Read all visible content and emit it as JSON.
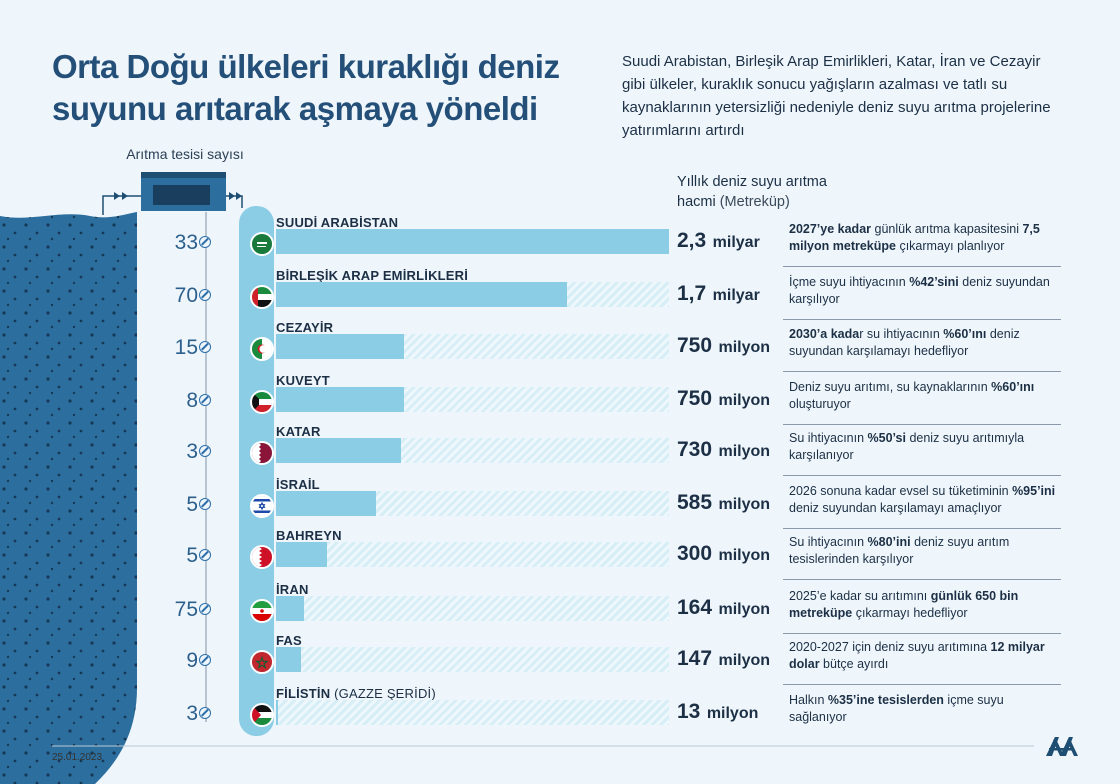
{
  "header": {
    "title": "Orta Doğu ülkeleri kuraklığı deniz suyunu arıtarak aşmaya yöneldi",
    "subtitle": "Suudi Arabistan, Birleşik Arap Emirlikleri, Katar, İran ve Cezayir gibi ülkeler, kuraklık sonucu yağışların azalması ve tatlı su kaynaklarının yetersizliği nedeniyle deniz suyu arıtma projelerine yatırımlarını artırdı"
  },
  "plant_label": "Arıtma tesisi sayısı",
  "volume_header": {
    "line1": "Yıllık deniz suyu arıtma",
    "line2": "hacmi",
    "unit": "(Metreküp)"
  },
  "chart_data": {
    "type": "bar",
    "title": "Yıllık deniz suyu arıtma hacmi",
    "unit": "Metreküp",
    "categories": [
      "SUUDİ ARABİSTAN",
      "BİRLEŞİK ARAP EMİRLİKLERİ",
      "CEZAYİR",
      "KUVEYT",
      "KATAR",
      "İSRAİL",
      "BAHREYN",
      "İRAN",
      "FAS",
      "FİLİSTİN"
    ],
    "values": [
      2300000000,
      1700000000,
      750000000,
      750000000,
      730000000,
      585000000,
      300000000,
      164000000,
      147000000,
      13000000
    ],
    "plant_counts": [
      33,
      70,
      15,
      8,
      3,
      5,
      5,
      75,
      9,
      3
    ],
    "xlim": [
      0,
      2300000000
    ]
  },
  "rows": [
    {
      "name": "SUUDİ ARABİSTAN",
      "name_sub": "",
      "count": "33",
      "value": 2300000000,
      "value_num": "2,3",
      "value_unit": "milyar",
      "flag": "saudi-arabia",
      "note": [
        {
          "t": "2027’ye kadar",
          "b": true
        },
        {
          "t": " günlük arıtma kapasitesini ",
          "b": false
        },
        {
          "t": "7,5 milyon metreküpe",
          "b": true
        },
        {
          "t": " çıkarmayı planlıyor",
          "b": false
        }
      ]
    },
    {
      "name": "BİRLEŞİK ARAP EMİRLİKLERİ",
      "name_sub": "",
      "count": "70",
      "value": 1700000000,
      "value_num": "1,7",
      "value_unit": "milyar",
      "flag": "uae",
      "note": [
        {
          "t": "İçme suyu ihtiyacının ",
          "b": false
        },
        {
          "t": "%42’sini",
          "b": true
        },
        {
          "t": " deniz suyundan karşılıyor",
          "b": false
        }
      ]
    },
    {
      "name": "CEZAYİR",
      "name_sub": "",
      "count": "15",
      "value": 750000000,
      "value_num": "750",
      "value_unit": "milyon",
      "flag": "algeria",
      "note": [
        {
          "t": "2030’a kada",
          "b": true
        },
        {
          "t": "r su ihtiyacının ",
          "b": false
        },
        {
          "t": "%60’ını",
          "b": true
        },
        {
          "t": " deniz suyundan karşılamayı hedefliyor",
          "b": false
        }
      ]
    },
    {
      "name": "KUVEYT",
      "name_sub": "",
      "count": "8",
      "value": 750000000,
      "value_num": "750",
      "value_unit": "milyon",
      "flag": "kuwait",
      "note": [
        {
          "t": "Deniz suyu arıtımı, su kaynaklarının ",
          "b": false
        },
        {
          "t": "%60’ını",
          "b": true
        },
        {
          "t": " oluşturuyor",
          "b": false
        }
      ]
    },
    {
      "name": "KATAR",
      "name_sub": "",
      "count": "3",
      "value": 730000000,
      "value_num": "730",
      "value_unit": "milyon",
      "flag": "qatar",
      "note": [
        {
          "t": "Su ihtiyacının ",
          "b": false
        },
        {
          "t": "%50’si",
          "b": true
        },
        {
          "t": " deniz suyu arıtımıyla karşılanıyor",
          "b": false
        }
      ]
    },
    {
      "name": "İSRAİL",
      "name_sub": "",
      "count": "5",
      "value": 585000000,
      "value_num": "585",
      "value_unit": "milyon",
      "flag": "israel",
      "note": [
        {
          "t": "2026 sonuna kadar evsel su tüketiminin ",
          "b": false
        },
        {
          "t": "%95’ini",
          "b": true
        },
        {
          "t": " deniz suyundan karşılamayı amaçlıyor",
          "b": false
        }
      ]
    },
    {
      "name": "BAHREYN",
      "name_sub": "",
      "count": "5",
      "value": 300000000,
      "value_num": "300",
      "value_unit": "milyon",
      "flag": "bahrain",
      "note": [
        {
          "t": "Su ihtiyacının ",
          "b": false
        },
        {
          "t": "%80’ini",
          "b": true
        },
        {
          "t": " deniz suyu arıtım tesislerinden karşılıyor",
          "b": false
        }
      ]
    },
    {
      "name": "İRAN",
      "name_sub": "",
      "count": "75",
      "value": 164000000,
      "value_num": "164",
      "value_unit": "milyon",
      "flag": "iran",
      "note": [
        {
          "t": "2025’e kadar su arıtımını ",
          "b": false
        },
        {
          "t": "günlük 650 bin metreküpe",
          "b": true
        },
        {
          "t": " çıkarmayı hedefliyor",
          "b": false
        }
      ]
    },
    {
      "name": "FAS",
      "name_sub": "",
      "count": "9",
      "value": 147000000,
      "value_num": "147",
      "value_unit": "milyon",
      "flag": "morocco",
      "note": [
        {
          "t": "2020-2027 için deniz suyu arıtımına ",
          "b": false
        },
        {
          "t": "12 milyar dolar",
          "b": true
        },
        {
          "t": " bütçe ayırdı",
          "b": false
        }
      ]
    },
    {
      "name": "FİLİSTİN",
      "name_sub": " (GAZZE ŞERİDİ)",
      "count": "3",
      "value": 13000000,
      "value_num": "13",
      "value_unit": "milyon",
      "flag": "palestine",
      "note": [
        {
          "t": "Halkın ",
          "b": false
        },
        {
          "t": "%35’ine tesislerden",
          "b": true
        },
        {
          "t": " içme suyu sağlanıyor",
          "b": false
        }
      ]
    }
  ],
  "footer": {
    "date": "25.01.2023",
    "logo_text": "AA"
  },
  "colors": {
    "bar": "#8ccde6",
    "track": "#d8eef7",
    "sea": "#2c6e9e",
    "title": "#244f78",
    "pipe": "#8ccde6"
  }
}
